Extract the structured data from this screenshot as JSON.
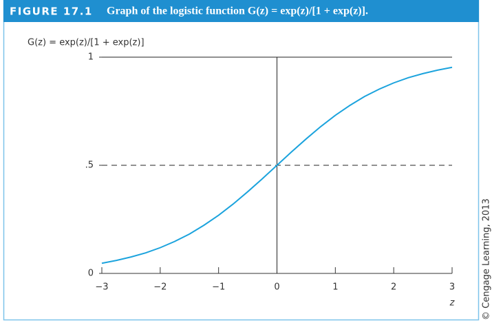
{
  "chart_data": {
    "type": "line",
    "figure_label": "FIGURE 17.1",
    "title": "Graph of the logistic function G(z) = exp(z)/[1 + exp(z)].",
    "y_label": "G(z) = exp(z)/[1 + exp(z)]",
    "x_label": "z",
    "credit": "© Cengage Learning, 2013",
    "x": [
      -3,
      -2.75,
      -2.5,
      -2.25,
      -2,
      -1.75,
      -1.5,
      -1.25,
      -1,
      -0.75,
      -0.5,
      -0.25,
      0,
      0.25,
      0.5,
      0.75,
      1,
      1.25,
      1.5,
      1.75,
      2,
      2.25,
      2.5,
      2.75,
      3
    ],
    "values": [
      0.047,
      0.06,
      0.076,
      0.095,
      0.119,
      0.148,
      0.182,
      0.223,
      0.269,
      0.321,
      0.378,
      0.438,
      0.5,
      0.562,
      0.622,
      0.679,
      0.731,
      0.777,
      0.818,
      0.852,
      0.881,
      0.905,
      0.924,
      0.94,
      0.953
    ],
    "color": "#1ba3dd",
    "xlim": [
      -3,
      3
    ],
    "ylim": [
      0,
      1
    ],
    "xticks": [
      {
        "value": -3,
        "label": "−3"
      },
      {
        "value": -2,
        "label": "−2"
      },
      {
        "value": -1,
        "label": "−1"
      },
      0,
      1,
      2,
      3
    ],
    "yticks": [
      0,
      {
        "value": 0.5,
        "label": ".5"
      },
      1
    ],
    "hlines": [
      {
        "y": 1,
        "dashed": false
      },
      {
        "y": 0.5,
        "dashed": true
      }
    ],
    "vlines": [
      0
    ]
  }
}
